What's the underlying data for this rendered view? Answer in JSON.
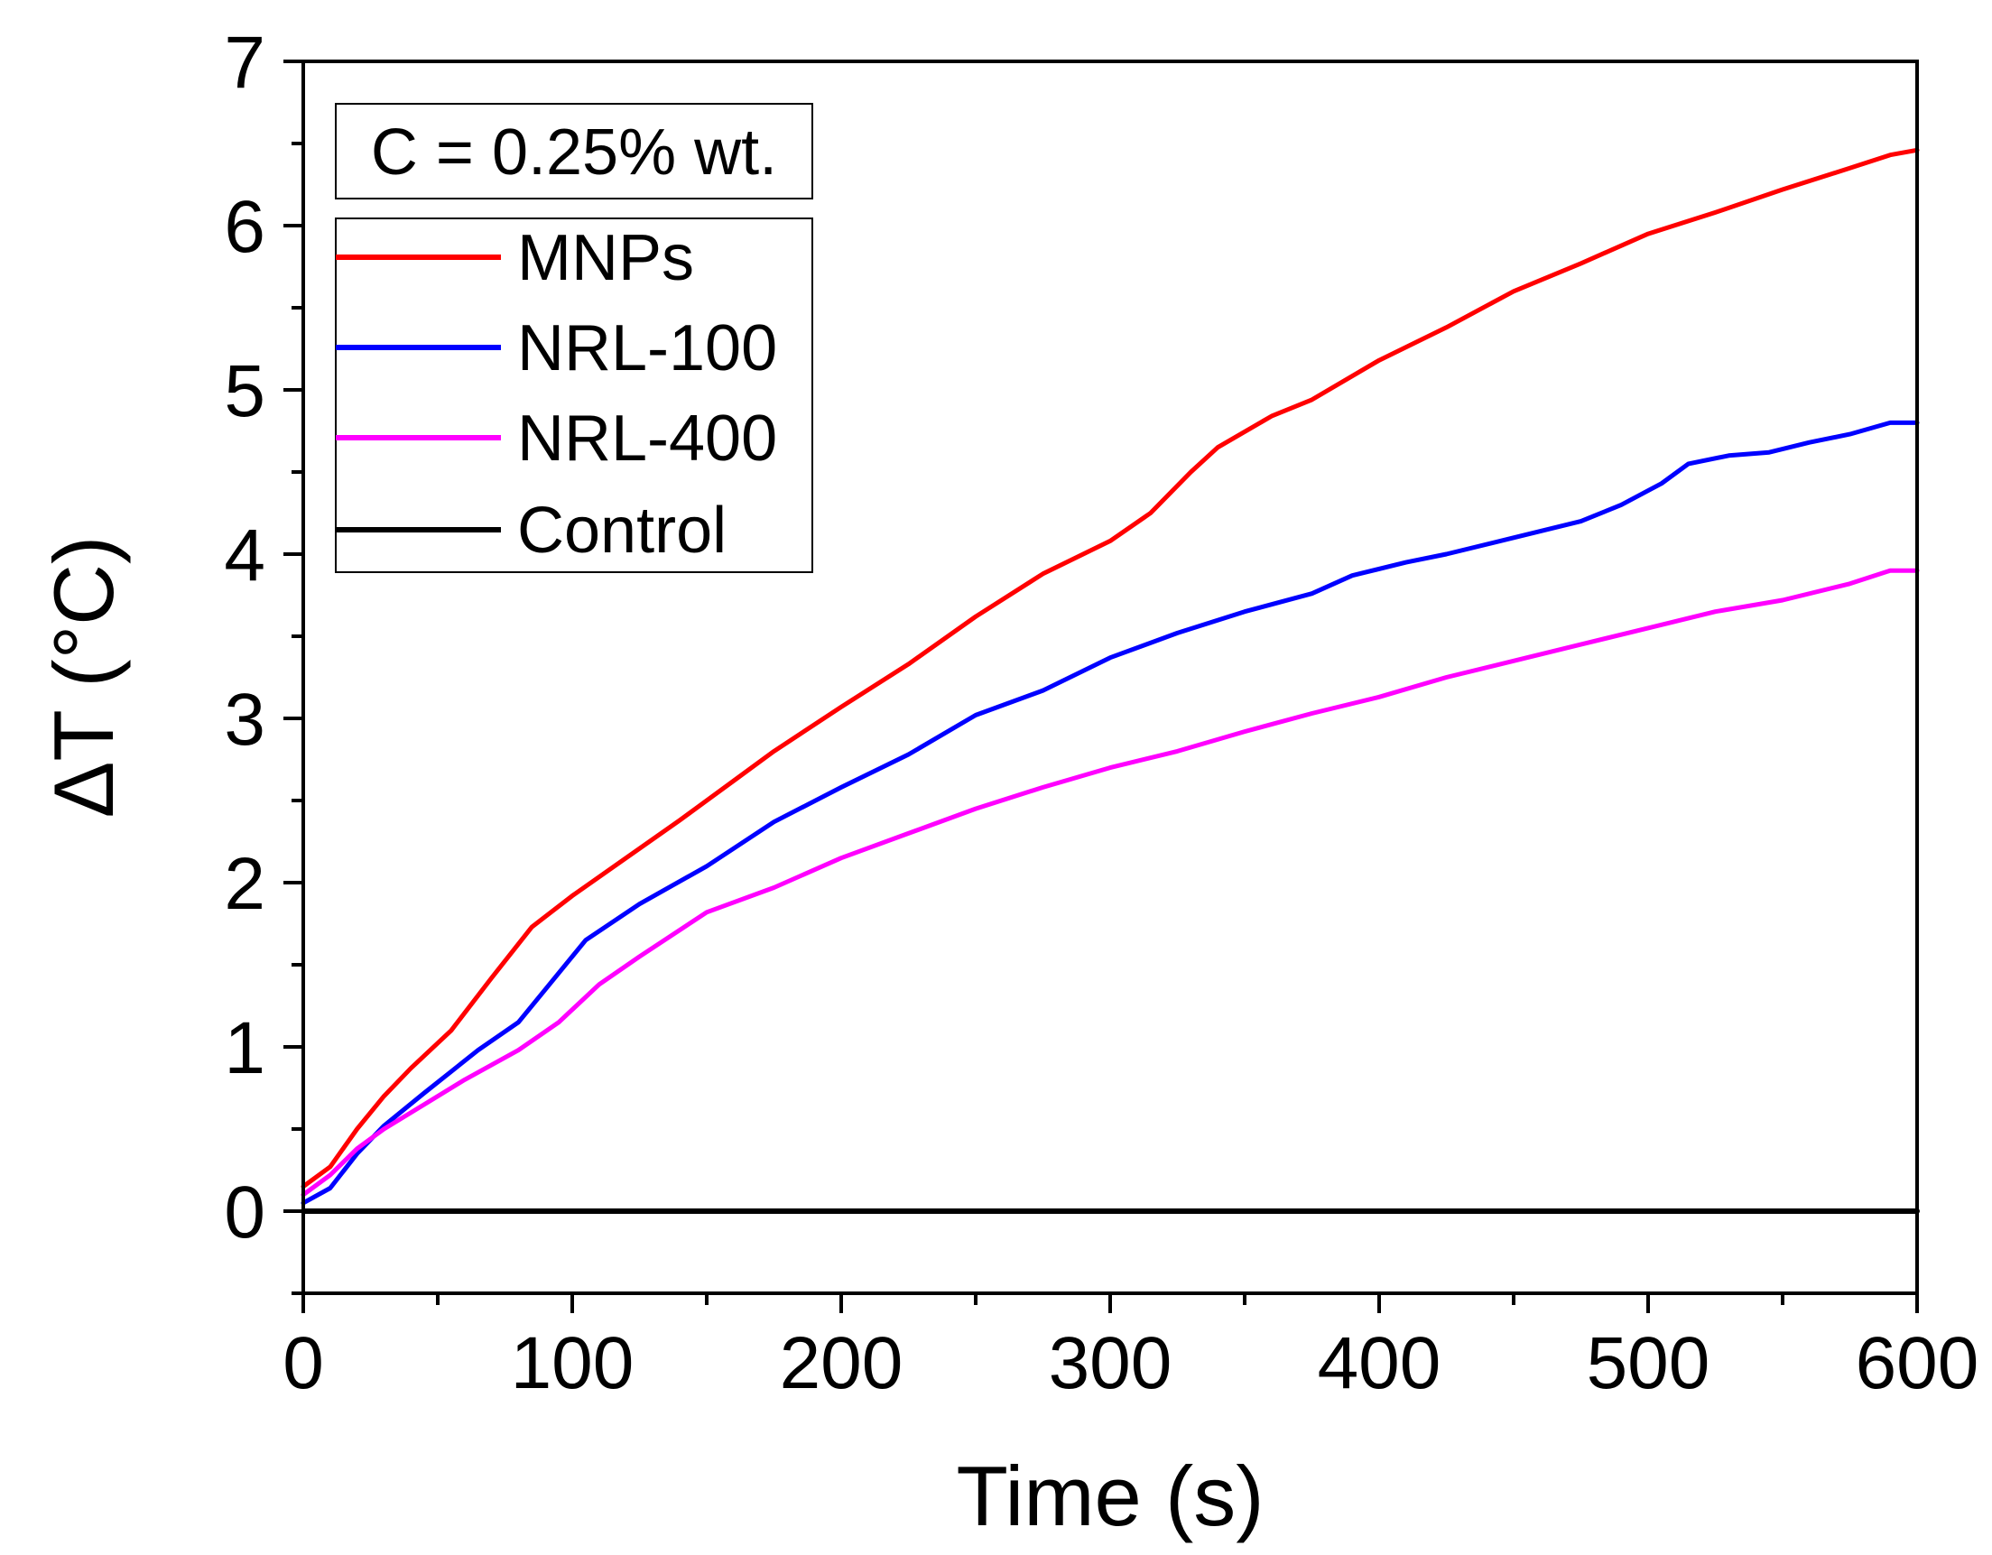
{
  "chart_data": {
    "type": "line",
    "title": "",
    "xlabel": "Time (s)",
    "ylabel": "ΔT (°C)",
    "xlim": [
      0,
      600
    ],
    "ylim": [
      -0.5,
      7
    ],
    "x_ticks": [
      0,
      100,
      200,
      300,
      400,
      500,
      600
    ],
    "y_ticks": [
      0,
      1,
      2,
      3,
      4,
      5,
      6,
      7
    ],
    "grid": false,
    "annotation": "C = 0.25% wt.",
    "legend_position": "top-left",
    "series": [
      {
        "name": "MNPs",
        "color": "#ff0000",
        "x": [
          0,
          10,
          20,
          30,
          40,
          55,
          70,
          85,
          100,
          120,
          140,
          160,
          175,
          200,
          225,
          250,
          275,
          300,
          315,
          330,
          340,
          360,
          375,
          400,
          425,
          450,
          475,
          500,
          525,
          550,
          575,
          590,
          600
        ],
        "y": [
          0.15,
          0.27,
          0.5,
          0.7,
          0.87,
          1.1,
          1.42,
          1.73,
          1.92,
          2.15,
          2.38,
          2.62,
          2.8,
          3.07,
          3.33,
          3.62,
          3.88,
          4.08,
          4.25,
          4.5,
          4.65,
          4.84,
          4.94,
          5.18,
          5.38,
          5.6,
          5.77,
          5.95,
          6.08,
          6.22,
          6.35,
          6.43,
          6.46
        ]
      },
      {
        "name": "NRL-100",
        "color": "#0000ff",
        "x": [
          0,
          10,
          20,
          30,
          45,
          55,
          65,
          80,
          90,
          105,
          125,
          150,
          175,
          200,
          225,
          250,
          275,
          300,
          325,
          350,
          375,
          390,
          410,
          425,
          450,
          475,
          490,
          505,
          515,
          530,
          545,
          560,
          575,
          590,
          600
        ],
        "y": [
          0.05,
          0.14,
          0.35,
          0.52,
          0.72,
          0.85,
          0.98,
          1.15,
          1.35,
          1.65,
          1.87,
          2.1,
          2.37,
          2.58,
          2.78,
          3.02,
          3.17,
          3.37,
          3.52,
          3.65,
          3.76,
          3.87,
          3.95,
          4.0,
          4.1,
          4.2,
          4.3,
          4.43,
          4.55,
          4.6,
          4.62,
          4.68,
          4.73,
          4.8,
          4.8
        ]
      },
      {
        "name": "NRL-400",
        "color": "#ff00ff",
        "x": [
          0,
          10,
          20,
          30,
          45,
          60,
          80,
          95,
          110,
          125,
          150,
          175,
          200,
          225,
          250,
          275,
          300,
          325,
          350,
          375,
          400,
          425,
          450,
          475,
          500,
          525,
          550,
          575,
          590,
          600
        ],
        "y": [
          0.1,
          0.22,
          0.38,
          0.5,
          0.65,
          0.8,
          0.98,
          1.15,
          1.38,
          1.55,
          1.82,
          1.97,
          2.15,
          2.3,
          2.45,
          2.58,
          2.7,
          2.8,
          2.92,
          3.03,
          3.13,
          3.25,
          3.35,
          3.45,
          3.55,
          3.65,
          3.72,
          3.82,
          3.9,
          3.9
        ]
      },
      {
        "name": "Control",
        "color": "#000000",
        "x": [
          0,
          600
        ],
        "y": [
          0,
          0
        ]
      }
    ]
  }
}
